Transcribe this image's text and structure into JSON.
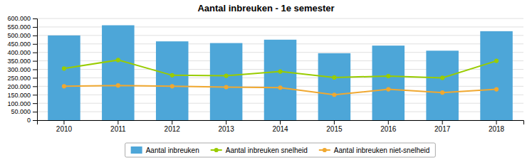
{
  "chart_data": {
    "type": "bar",
    "title": "Aantal inbreuken - 1e semester",
    "categories": [
      "2010",
      "2011",
      "2012",
      "2013",
      "2014",
      "2015",
      "2016",
      "2017",
      "2018"
    ],
    "series": [
      {
        "name": "Aantal inbreuken",
        "type": "bar",
        "color": "#4da6d8",
        "values": [
          500000,
          560000,
          465000,
          455000,
          475000,
          395000,
          440000,
          410000,
          525000
        ]
      },
      {
        "name": "Aantal inbreuken snelheid",
        "type": "line",
        "color": "#99cc00",
        "marker": "circle",
        "values": [
          305000,
          355000,
          265000,
          262000,
          287000,
          252000,
          260000,
          250000,
          350000
        ]
      },
      {
        "name": "Aantal inbreuken niet-snelheid",
        "type": "line",
        "color": "#f0a830",
        "marker": "circle",
        "values": [
          200000,
          205000,
          200000,
          195000,
          192000,
          150000,
          182000,
          163000,
          182000
        ]
      }
    ],
    "ylim": [
      0,
      600000
    ],
    "yticks": [
      0,
      {
        "value": 50000,
        "label": "50.000"
      },
      {
        "value": 100000,
        "label": "100.000"
      },
      {
        "value": 150000,
        "label": "150.000"
      },
      {
        "value": 200000,
        "label": "200.000"
      },
      {
        "value": 250000,
        "label": "250.000"
      },
      {
        "value": 300000,
        "label": "300.000"
      },
      {
        "value": 350000,
        "label": "350.000"
      },
      {
        "value": 400000,
        "label": "400.000"
      },
      {
        "value": 450000,
        "label": "450.000"
      },
      {
        "value": 500000,
        "label": "500.000"
      },
      {
        "value": 550000,
        "label": "550.000"
      },
      {
        "value": 600000,
        "label": "600.000"
      }
    ],
    "grid": true,
    "legend": "bottom"
  }
}
